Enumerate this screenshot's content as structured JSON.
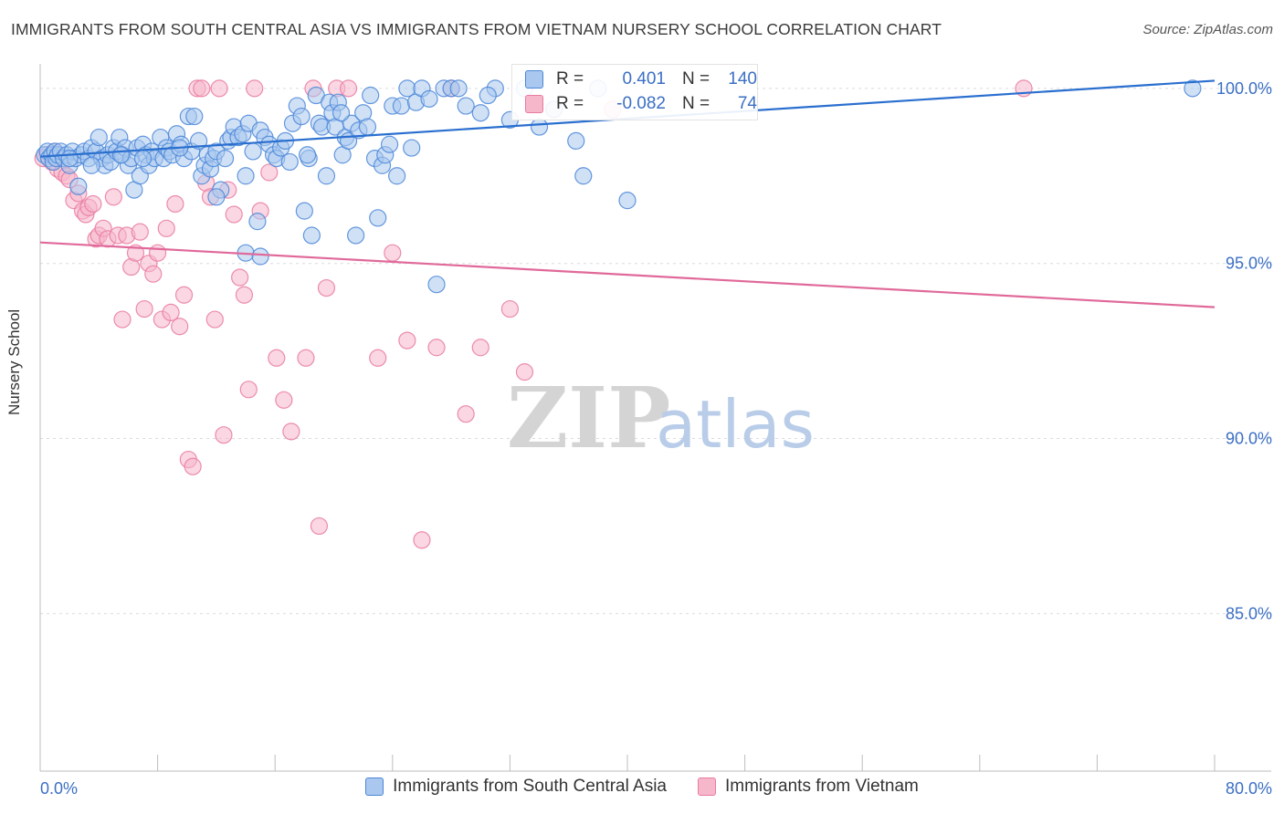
{
  "title": "IMMIGRANTS FROM SOUTH CENTRAL ASIA VS IMMIGRANTS FROM VIETNAM NURSERY SCHOOL CORRELATION CHART",
  "source": "Source: ZipAtlas.com",
  "watermark": "ZIPatlas",
  "colors": {
    "blue": "#4a86d8",
    "blue_fill": "#aac8ef",
    "blue_line": "#2a6fcf",
    "pink": "#e97aa0",
    "pink_fill": "#f6b7cb",
    "pink_line": "#e0699a",
    "tick_label": "#3b6fc4",
    "grid": "#dcdcdc"
  },
  "stats": {
    "blue": {
      "r_label": "R =",
      "r_value": "0.401",
      "n_label": "N =",
      "n_value": "140"
    },
    "pink": {
      "r_label": "R =",
      "r_value": "-0.082",
      "n_label": "N =",
      "n_value": "74"
    }
  },
  "chart_data": {
    "type": "scatter",
    "title": "IMMIGRANTS FROM SOUTH CENTRAL ASIA VS IMMIGRANTS FROM VIETNAM NURSERY SCHOOL CORRELATION CHART",
    "xlabel": "",
    "ylabel": "Nursery School",
    "xlim": [
      0,
      80
    ],
    "ylim": [
      80.5,
      100.7
    ],
    "x_tick_labels": [
      "0.0%",
      "80.0%"
    ],
    "y_ticks": [
      85,
      90,
      95,
      100
    ],
    "y_tick_labels": [
      "85.0%",
      "90.0%",
      "95.0%",
      "100.0%"
    ],
    "grid": true,
    "legend_position": "bottom",
    "series": [
      {
        "name": "Immigrants from South Central Asia",
        "color": "#4a86d8",
        "trend": {
          "x": [
            0,
            80
          ],
          "y": [
            98.05,
            100.22
          ]
        },
        "points": [
          [
            0.3,
            98.1
          ],
          [
            0.5,
            98.2
          ],
          [
            0.6,
            98.0
          ],
          [
            0.8,
            98.1
          ],
          [
            0.9,
            97.9
          ],
          [
            1.0,
            98.2
          ],
          [
            1.1,
            98.0
          ],
          [
            1.2,
            98.1
          ],
          [
            1.4,
            98.2
          ],
          [
            1.6,
            98.0
          ],
          [
            1.8,
            98.1
          ],
          [
            2.0,
            97.8
          ],
          [
            2.2,
            98.2
          ],
          [
            2.4,
            98.0
          ],
          [
            2.6,
            97.2
          ],
          [
            2.8,
            98.1
          ],
          [
            3.0,
            98.2
          ],
          [
            3.3,
            98.0
          ],
          [
            3.5,
            98.3
          ],
          [
            3.8,
            98.2
          ],
          [
            4.0,
            98.6
          ],
          [
            4.2,
            98.0
          ],
          [
            4.4,
            97.8
          ],
          [
            4.6,
            98.1
          ],
          [
            4.8,
            97.9
          ],
          [
            5.0,
            98.3
          ],
          [
            5.2,
            98.2
          ],
          [
            5.4,
            98.6
          ],
          [
            5.6,
            98.1
          ],
          [
            5.8,
            98.3
          ],
          [
            6.0,
            97.8
          ],
          [
            6.2,
            98.0
          ],
          [
            6.4,
            97.1
          ],
          [
            6.6,
            98.3
          ],
          [
            6.8,
            97.5
          ],
          [
            7.0,
            98.4
          ],
          [
            7.2,
            98.1
          ],
          [
            7.4,
            97.8
          ],
          [
            7.6,
            98.2
          ],
          [
            7.8,
            98.0
          ],
          [
            8.2,
            98.6
          ],
          [
            8.4,
            98.0
          ],
          [
            8.6,
            98.3
          ],
          [
            8.8,
            98.2
          ],
          [
            9.0,
            98.1
          ],
          [
            9.3,
            98.7
          ],
          [
            9.6,
            98.4
          ],
          [
            9.8,
            98.0
          ],
          [
            10.1,
            99.2
          ],
          [
            10.3,
            98.2
          ],
          [
            10.5,
            99.2
          ],
          [
            10.8,
            98.5
          ],
          [
            11.0,
            97.5
          ],
          [
            11.2,
            97.8
          ],
          [
            11.4,
            98.1
          ],
          [
            11.6,
            97.7
          ],
          [
            11.8,
            98.0
          ],
          [
            12.0,
            98.2
          ],
          [
            12.3,
            97.1
          ],
          [
            12.6,
            98.0
          ],
          [
            12.8,
            98.5
          ],
          [
            13.0,
            98.6
          ],
          [
            13.2,
            98.9
          ],
          [
            13.5,
            98.6
          ],
          [
            13.8,
            98.7
          ],
          [
            14.0,
            97.5
          ],
          [
            14.2,
            99.0
          ],
          [
            14.5,
            98.2
          ],
          [
            14.8,
            96.2
          ],
          [
            15.0,
            98.8
          ],
          [
            15.3,
            98.6
          ],
          [
            15.6,
            98.4
          ],
          [
            15.9,
            98.1
          ],
          [
            16.1,
            98.0
          ],
          [
            16.4,
            98.3
          ],
          [
            16.7,
            98.5
          ],
          [
            17.0,
            97.9
          ],
          [
            17.2,
            99.0
          ],
          [
            17.5,
            99.5
          ],
          [
            17.8,
            99.2
          ],
          [
            18.0,
            96.5
          ],
          [
            18.3,
            98.0
          ],
          [
            18.5,
            95.8
          ],
          [
            18.8,
            99.8
          ],
          [
            19.0,
            99.0
          ],
          [
            19.2,
            98.9
          ],
          [
            19.5,
            97.5
          ],
          [
            19.7,
            99.6
          ],
          [
            19.9,
            99.3
          ],
          [
            20.1,
            98.9
          ],
          [
            20.3,
            99.6
          ],
          [
            20.6,
            98.1
          ],
          [
            20.8,
            98.6
          ],
          [
            21.0,
            98.5
          ],
          [
            21.2,
            99.0
          ],
          [
            21.5,
            95.8
          ],
          [
            21.7,
            98.8
          ],
          [
            22.0,
            99.3
          ],
          [
            22.3,
            98.9
          ],
          [
            22.5,
            99.8
          ],
          [
            22.8,
            98.0
          ],
          [
            23.0,
            96.3
          ],
          [
            23.3,
            97.8
          ],
          [
            23.5,
            98.1
          ],
          [
            23.8,
            98.4
          ],
          [
            24.0,
            99.5
          ],
          [
            24.3,
            97.5
          ],
          [
            24.6,
            99.5
          ],
          [
            25.0,
            100.0
          ],
          [
            25.3,
            98.3
          ],
          [
            25.6,
            99.6
          ],
          [
            26.0,
            100.0
          ],
          [
            26.5,
            99.7
          ],
          [
            27.0,
            94.4
          ],
          [
            27.5,
            100.0
          ],
          [
            28.0,
            100.0
          ],
          [
            28.5,
            100.0
          ],
          [
            29.0,
            99.5
          ],
          [
            30.0,
            99.3
          ],
          [
            31.0,
            100.0
          ],
          [
            32.0,
            99.1
          ],
          [
            33.0,
            100.0
          ],
          [
            34.0,
            98.9
          ],
          [
            35.0,
            99.4
          ],
          [
            36.5,
            98.5
          ],
          [
            37.0,
            97.5
          ],
          [
            38.0,
            100.0
          ],
          [
            40.0,
            96.8
          ],
          [
            14.0,
            95.3
          ],
          [
            15.0,
            95.2
          ],
          [
            12.0,
            96.9
          ],
          [
            9.5,
            98.3
          ],
          [
            7.0,
            98.0
          ],
          [
            5.5,
            98.1
          ],
          [
            3.5,
            97.8
          ],
          [
            2.0,
            98.0
          ],
          [
            20.5,
            99.3
          ],
          [
            18.2,
            98.1
          ],
          [
            30.5,
            99.8
          ],
          [
            78.5,
            100.0
          ]
        ]
      },
      {
        "name": "Immigrants from Vietnam",
        "color": "#e97aa0",
        "trend": {
          "x": [
            0,
            80
          ],
          "y": [
            95.6,
            93.75
          ]
        },
        "points": [
          [
            0.2,
            98.0
          ],
          [
            0.5,
            98.1
          ],
          [
            0.8,
            97.9
          ],
          [
            1.0,
            98.2
          ],
          [
            1.2,
            97.7
          ],
          [
            1.5,
            97.6
          ],
          [
            1.8,
            97.5
          ],
          [
            2.0,
            97.4
          ],
          [
            2.3,
            96.8
          ],
          [
            2.6,
            97.0
          ],
          [
            2.9,
            96.5
          ],
          [
            3.1,
            96.4
          ],
          [
            3.3,
            96.6
          ],
          [
            3.6,
            96.7
          ],
          [
            3.8,
            95.7
          ],
          [
            4.0,
            95.8
          ],
          [
            4.3,
            96.0
          ],
          [
            4.6,
            95.7
          ],
          [
            5.0,
            96.9
          ],
          [
            5.3,
            95.8
          ],
          [
            5.6,
            93.4
          ],
          [
            5.9,
            95.8
          ],
          [
            6.2,
            94.9
          ],
          [
            6.5,
            95.3
          ],
          [
            6.8,
            95.9
          ],
          [
            7.1,
            93.7
          ],
          [
            7.4,
            95.0
          ],
          [
            7.7,
            94.7
          ],
          [
            8.0,
            95.3
          ],
          [
            8.3,
            93.4
          ],
          [
            8.6,
            96.0
          ],
          [
            8.9,
            93.6
          ],
          [
            9.2,
            96.7
          ],
          [
            9.5,
            93.2
          ],
          [
            9.8,
            94.1
          ],
          [
            10.1,
            89.4
          ],
          [
            10.4,
            89.2
          ],
          [
            10.7,
            100.0
          ],
          [
            11.0,
            100.0
          ],
          [
            11.3,
            97.3
          ],
          [
            11.6,
            96.9
          ],
          [
            11.9,
            93.4
          ],
          [
            12.2,
            100.0
          ],
          [
            12.5,
            90.1
          ],
          [
            12.8,
            97.1
          ],
          [
            13.2,
            96.4
          ],
          [
            13.6,
            94.6
          ],
          [
            13.9,
            94.1
          ],
          [
            14.2,
            91.4
          ],
          [
            14.6,
            100.0
          ],
          [
            15.0,
            96.5
          ],
          [
            15.6,
            97.6
          ],
          [
            16.1,
            92.3
          ],
          [
            16.6,
            91.1
          ],
          [
            17.1,
            90.2
          ],
          [
            18.1,
            92.3
          ],
          [
            18.6,
            100.0
          ],
          [
            19.0,
            87.5
          ],
          [
            19.5,
            94.3
          ],
          [
            20.2,
            100.0
          ],
          [
            21.0,
            100.0
          ],
          [
            23.0,
            92.3
          ],
          [
            24.0,
            95.3
          ],
          [
            25.0,
            92.8
          ],
          [
            26.0,
            87.1
          ],
          [
            27.0,
            92.6
          ],
          [
            28.0,
            100.0
          ],
          [
            29.0,
            90.7
          ],
          [
            30.0,
            92.6
          ],
          [
            32.0,
            93.7
          ],
          [
            33.0,
            91.9
          ],
          [
            35.0,
            99.4
          ],
          [
            39.0,
            99.4
          ],
          [
            67.0,
            100.0
          ]
        ]
      }
    ]
  }
}
